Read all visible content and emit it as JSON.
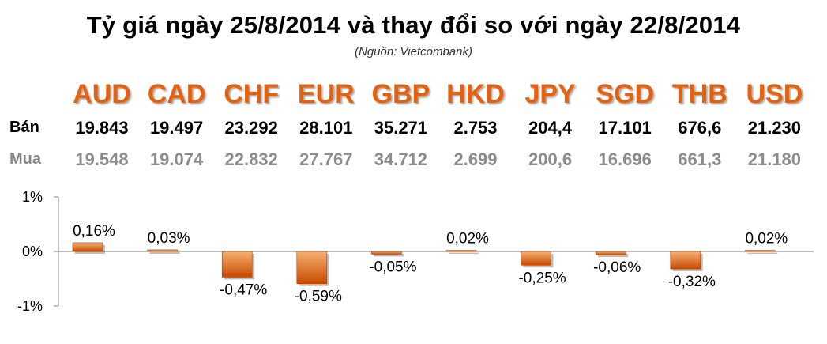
{
  "title": "Tỷ giá ngày 25/8/2014 và thay đổi so với ngày 22/8/2014",
  "source": "(Nguồn: Vietcombank)",
  "row_labels": {
    "sell": "Bán",
    "buy": "Mua"
  },
  "colors": {
    "accent": "#e4620e",
    "bar_top": "#f7b070",
    "bar_bottom": "#c84a00",
    "buy_text": "#8c8c8c"
  },
  "chart_data": {
    "type": "bar",
    "categories": [
      "AUD",
      "CAD",
      "CHF",
      "EUR",
      "GBP",
      "HKD",
      "JPY",
      "SGD",
      "THB",
      "USD"
    ],
    "sell_rates": [
      "19.843",
      "19.497",
      "23.292",
      "28.101",
      "35.271",
      "2.753",
      "204,4",
      "17.101",
      "676,6",
      "21.230"
    ],
    "buy_rates": [
      "19.548",
      "19.074",
      "22.832",
      "27.767",
      "34.712",
      "2.699",
      "200,6",
      "16.696",
      "661,3",
      "21.180"
    ],
    "values": [
      0.16,
      0.03,
      -0.47,
      -0.59,
      -0.05,
      0.02,
      -0.25,
      -0.06,
      -0.32,
      0.02
    ],
    "value_labels": [
      "0,16%",
      "0,03%",
      "-0,47%",
      "-0,59%",
      "-0,05%",
      "0,02%",
      "-0,25%",
      "-0,06%",
      "-0,32%",
      "0,02%"
    ],
    "ylim": [
      -1,
      1
    ],
    "yticks": [
      "1%",
      "0%",
      "-1%"
    ],
    "ytick_values": [
      1,
      0,
      -1
    ],
    "grid": false,
    "legend": "none"
  }
}
